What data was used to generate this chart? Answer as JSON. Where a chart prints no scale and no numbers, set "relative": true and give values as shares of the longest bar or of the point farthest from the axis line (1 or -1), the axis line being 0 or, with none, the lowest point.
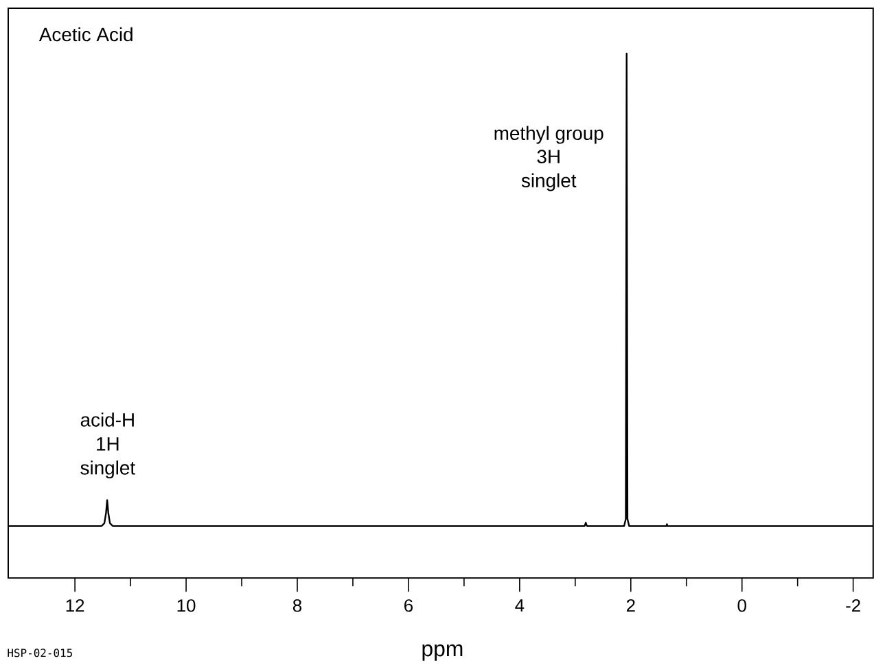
{
  "chart_data": {
    "type": "line",
    "title": "Acetic Acid",
    "xlabel": "ppm",
    "relative": true,
    "tick_labels": "x",
    "marker": "none",
    "line_style": "solid",
    "xlim": [
      13.2,
      -2.36
    ],
    "xticks": [
      12,
      10,
      8,
      6,
      4,
      2,
      0,
      -2
    ],
    "series": [
      {
        "color": "#000000",
        "x": [
          13.2,
          11.52,
          11.47,
          11.44,
          11.42,
          11.4,
          11.37,
          11.32,
          2.83,
          2.81,
          2.79,
          2.12,
          2.09,
          2.08,
          2.075,
          2.07,
          2.06,
          2.03,
          1.36,
          1.35,
          1.34,
          -2.36
        ],
        "values": [
          0,
          0,
          0.006,
          0.028,
          0.055,
          0.028,
          0.006,
          0,
          0,
          0.007,
          0,
          0,
          0.015,
          0.7,
          1,
          0.7,
          0.015,
          0,
          0,
          0.004,
          0,
          0
        ]
      }
    ],
    "annotations": [
      "acid-H",
      "1H",
      "singlet",
      "methyl group",
      "3H",
      "singlet",
      "HSP-02-015"
    ]
  }
}
